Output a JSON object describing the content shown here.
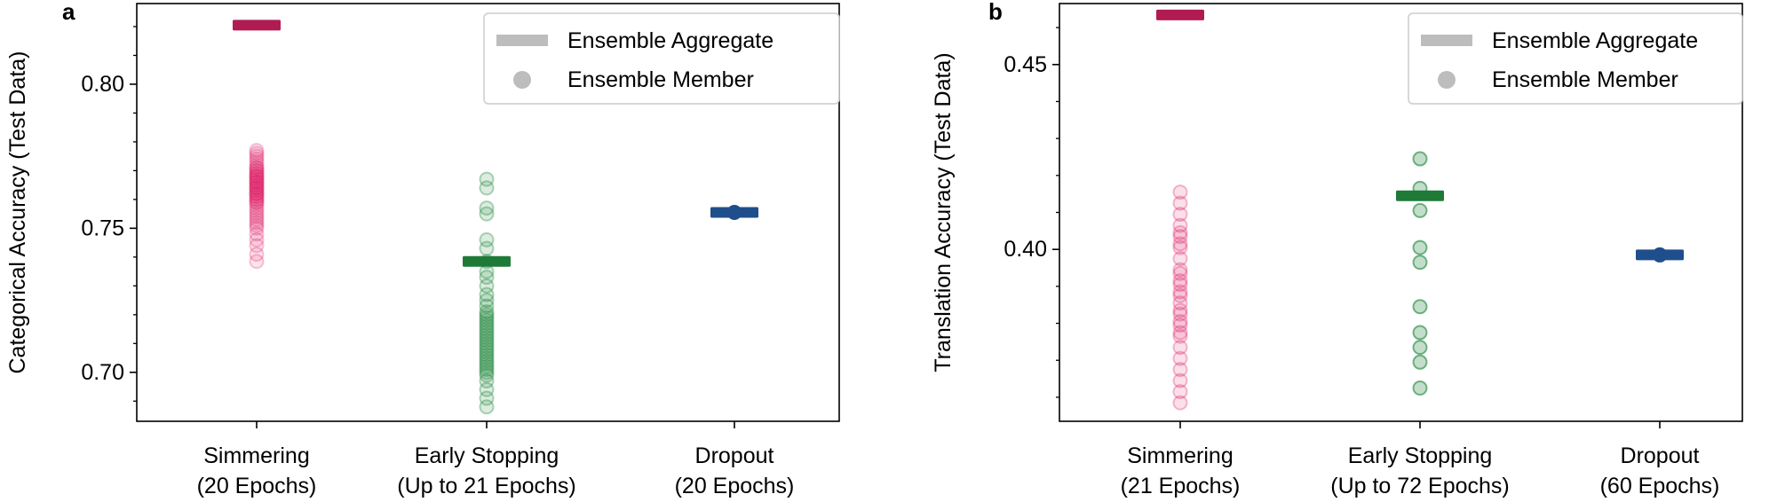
{
  "chart_data": [
    {
      "type": "scatter",
      "panel_label": "a",
      "title": "",
      "xlabel": "",
      "ylabel": "Categorical Accuracy (Test Data)",
      "ylim": [
        0.683,
        0.828
      ],
      "yticks": [
        0.7,
        0.75,
        0.8
      ],
      "ytick_labels": [
        "0.70",
        "0.75",
        "0.80"
      ],
      "categories": [
        {
          "line1": "Simmering",
          "line2": "(20 Epochs)"
        },
        {
          "line1": "Early Stopping",
          "line2": "(Up to 21 Epochs)"
        },
        {
          "line1": "Dropout",
          "line2": "(20 Epochs)"
        }
      ],
      "grid": false,
      "legend_position": "top-right",
      "legend": {
        "aggregate": "Ensemble Aggregate",
        "member": "Ensemble Member"
      },
      "series": [
        {
          "category": 0,
          "color": "#e0256b",
          "aggregate_color": "#b01c52",
          "member_alpha": 0.12,
          "aggregate": 0.8205,
          "members": [
            0.7385,
            0.741,
            0.744,
            0.746,
            0.748,
            0.75,
            0.751,
            0.752,
            0.753,
            0.754,
            0.755,
            0.756,
            0.757,
            0.758,
            0.759,
            0.76,
            0.761,
            0.762,
            0.763,
            0.764,
            0.765,
            0.766,
            0.767,
            0.768,
            0.769,
            0.77,
            0.771,
            0.772,
            0.773,
            0.774,
            0.775,
            0.776,
            0.777,
            0.76,
            0.762,
            0.764,
            0.766,
            0.768,
            0.77,
            0.759,
            0.761,
            0.763,
            0.765,
            0.767,
            0.769,
            0.771,
            0.762,
            0.764,
            0.766,
            0.768
          ]
        },
        {
          "category": 1,
          "color": "#23883f",
          "aggregate_color": "#1f7a37",
          "member_alpha": 0.16,
          "aggregate": 0.7385,
          "members": [
            0.688,
            0.691,
            0.694,
            0.697,
            0.699,
            0.701,
            0.703,
            0.705,
            0.707,
            0.709,
            0.711,
            0.713,
            0.715,
            0.717,
            0.719,
            0.721,
            0.723,
            0.725,
            0.727,
            0.73,
            0.733,
            0.735,
            0.7385,
            0.743,
            0.746,
            0.755,
            0.757,
            0.764,
            0.767,
            0.7,
            0.704,
            0.708,
            0.712,
            0.716,
            0.72,
            0.71,
            0.714,
            0.718,
            0.706,
            0.702
          ]
        },
        {
          "category": 2,
          "color": "#1f4e8c",
          "aggregate_color": "#1f4e8c",
          "member_alpha": 1.0,
          "aggregate": 0.7555,
          "members": [
            0.7555
          ]
        }
      ]
    },
    {
      "type": "scatter",
      "panel_label": "b",
      "title": "",
      "xlabel": "",
      "ylabel": "Translation Accuracy (Test Data)",
      "ylim": [
        0.3535,
        0.4665
      ],
      "yticks": [
        0.4,
        0.45
      ],
      "ytick_labels": [
        "0.40",
        "0.45"
      ],
      "categories": [
        {
          "line1": "Simmering",
          "line2": "(21 Epochs)"
        },
        {
          "line1": "Early Stopping",
          "line2": "(Up to 72 Epochs)"
        },
        {
          "line1": "Dropout",
          "line2": "(60 Epochs)"
        }
      ],
      "grid": false,
      "legend_position": "top-right",
      "legend": {
        "aggregate": "Ensemble Aggregate",
        "member": "Ensemble Member"
      },
      "series": [
        {
          "category": 0,
          "color": "#e0256b",
          "aggregate_color": "#b01c52",
          "member_alpha": 0.14,
          "aggregate": 0.4634,
          "members": [
            0.3585,
            0.3615,
            0.3645,
            0.3675,
            0.3705,
            0.3735,
            0.3765,
            0.3795,
            0.3825,
            0.3855,
            0.3885,
            0.3915,
            0.3945,
            0.3975,
            0.4005,
            0.4035,
            0.4065,
            0.4095,
            0.4125,
            0.4155,
            0.3805,
            0.3835,
            0.3875,
            0.3905,
            0.3935,
            0.4015,
            0.4045,
            0.3775
          ]
        },
        {
          "category": 1,
          "color": "#23883f",
          "aggregate_color": "#1f7a37",
          "member_alpha": 0.28,
          "aggregate": 0.4145,
          "members": [
            0.3625,
            0.3695,
            0.3735,
            0.3775,
            0.3845,
            0.3965,
            0.4005,
            0.4105,
            0.4165,
            0.4245
          ]
        },
        {
          "category": 2,
          "color": "#1f4e8c",
          "aggregate_color": "#1f4e8c",
          "member_alpha": 1.0,
          "aggregate": 0.3985,
          "members": [
            0.3985
          ]
        }
      ]
    }
  ]
}
